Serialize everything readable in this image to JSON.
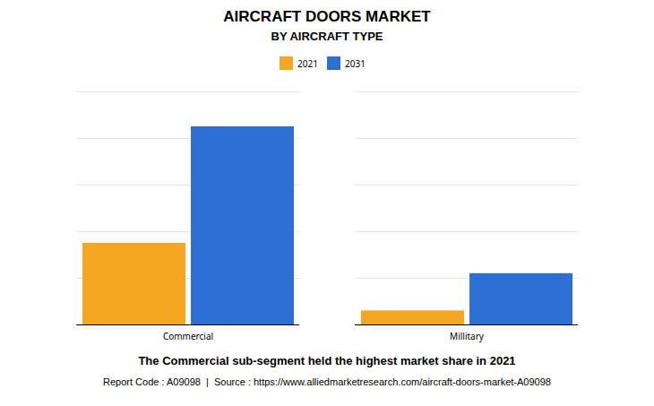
{
  "chart_data": {
    "type": "bar",
    "title": "AIRCRAFT DOORS MARKET",
    "subtitle": "BY AIRCRAFT TYPE",
    "categories": [
      "Commercial",
      "Millitary"
    ],
    "series": [
      {
        "name": "2021",
        "color": "#F5A623",
        "values": [
          3.5,
          0.6
        ]
      },
      {
        "name": "2031",
        "color": "#2E6FD4",
        "values": [
          8.5,
          2.2
        ]
      }
    ],
    "ylim": [
      0,
      10
    ],
    "yticks": [
      0,
      2,
      4,
      6,
      8,
      10
    ],
    "grid": true,
    "tick_labels": "x",
    "legend": "top",
    "annotation": "The Commercial sub-segment held the highest market share in 2021",
    "footer": "Report Code : A09098  |  Source : https://www.alliedmarketresearch.com/aircraft-doors-market-A09098"
  }
}
